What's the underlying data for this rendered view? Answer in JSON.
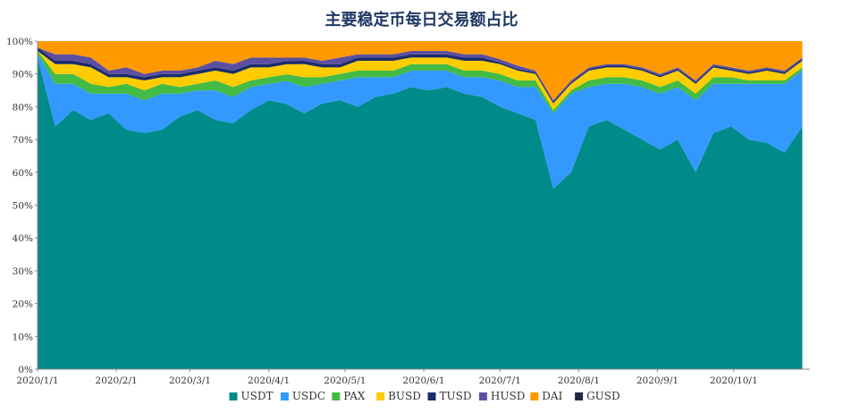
{
  "chart_data": {
    "type": "area",
    "stacked": true,
    "normalized": true,
    "title": "主要稳定币每日交易额占比",
    "xlabel": "",
    "ylabel": "",
    "ylim": [
      0,
      100
    ],
    "y_ticks": [
      "0%",
      "10%",
      "20%",
      "30%",
      "40%",
      "50%",
      "60%",
      "70%",
      "80%",
      "90%",
      "100%"
    ],
    "x_ticks": [
      "2020/1/1",
      "2020/2/1",
      "2020/3/1",
      "2020/4/1",
      "2020/5/1",
      "2020/6/1",
      "2020/7/1",
      "2020/8/1",
      "2020/9/1",
      "2020/10/1"
    ],
    "x_range": [
      "2020/1/1",
      "2020/10/31"
    ],
    "legend_position": "bottom",
    "grid": false,
    "x": [
      "2020/1/1",
      "2020/1/8",
      "2020/1/15",
      "2020/1/22",
      "2020/1/29",
      "2020/2/5",
      "2020/2/12",
      "2020/2/19",
      "2020/2/26",
      "2020/3/4",
      "2020/3/11",
      "2020/3/18",
      "2020/3/25",
      "2020/4/1",
      "2020/4/8",
      "2020/4/15",
      "2020/4/22",
      "2020/4/29",
      "2020/5/6",
      "2020/5/13",
      "2020/5/20",
      "2020/5/27",
      "2020/6/3",
      "2020/6/10",
      "2020/6/17",
      "2020/6/24",
      "2020/7/1",
      "2020/7/8",
      "2020/7/15",
      "2020/7/22",
      "2020/7/29",
      "2020/8/5",
      "2020/8/12",
      "2020/8/19",
      "2020/8/26",
      "2020/9/2",
      "2020/9/9",
      "2020/9/16",
      "2020/9/23",
      "2020/9/30",
      "2020/10/7",
      "2020/10/14",
      "2020/10/21",
      "2020/10/28"
    ],
    "series": [
      {
        "name": "USDT",
        "color": "#008B8B",
        "values": [
          95,
          74,
          79,
          76,
          78,
          73,
          72,
          73,
          77,
          79,
          76,
          75,
          79,
          82,
          80,
          78,
          81,
          82,
          80,
          83,
          84,
          86,
          85,
          86,
          84,
          83,
          80,
          78,
          76,
          55,
          60,
          74,
          76,
          73,
          70,
          67,
          70,
          60,
          72,
          74,
          70,
          69,
          66,
          74
        ]
      },
      {
        "name": "USDC",
        "color": "#3399FF",
        "values": [
          1,
          13,
          8,
          8,
          6,
          11,
          10,
          11,
          7,
          6,
          9,
          8,
          7,
          5,
          7,
          8,
          6,
          6,
          9,
          6,
          5,
          5,
          6,
          5,
          5,
          6,
          8,
          8,
          10,
          23,
          24,
          12,
          11,
          14,
          16,
          17,
          16,
          22,
          15,
          13,
          17,
          18,
          21,
          17
        ]
      },
      {
        "name": "PAX",
        "color": "#44BB44",
        "values": [
          1,
          3,
          3,
          3,
          2,
          3,
          3,
          3,
          2,
          2,
          3,
          3,
          2,
          2,
          2,
          3,
          2,
          2,
          2,
          2,
          2,
          2,
          2,
          2,
          2,
          2,
          2,
          2,
          2,
          1,
          1,
          2,
          2,
          2,
          2,
          2,
          2,
          2,
          2,
          2,
          1,
          1,
          1,
          1
        ]
      },
      {
        "name": "BUSD",
        "color": "#FFCC00",
        "values": [
          0,
          3,
          3,
          5,
          3,
          2,
          3,
          2,
          3,
          3,
          3,
          4,
          4,
          3,
          3,
          4,
          3,
          2,
          3,
          3,
          3,
          2,
          2,
          2,
          3,
          3,
          3,
          3,
          2,
          2,
          2,
          3,
          3,
          3,
          3,
          3,
          3,
          3,
          3,
          2,
          2,
          3,
          2,
          2
        ]
      },
      {
        "name": "TUSD",
        "color": "#1a2c6b",
        "values": [
          1,
          1,
          1,
          1,
          1,
          1,
          1,
          1,
          1,
          1,
          1,
          1,
          1,
          1,
          1,
          1,
          1,
          1,
          1,
          1,
          1,
          1,
          1,
          1,
          1,
          1,
          0.5,
          0.5,
          0.5,
          0.5,
          0.5,
          0.5,
          0.5,
          0.5,
          0.5,
          0.5,
          0.5,
          0.5,
          0.5,
          0.5,
          0.5,
          0.5,
          0.5,
          0.5
        ]
      },
      {
        "name": "HUSD",
        "color": "#5c4fa0",
        "values": [
          0,
          2,
          2,
          2,
          1,
          2,
          1,
          1,
          1,
          1,
          2,
          2,
          2,
          2,
          1,
          1,
          1,
          2,
          1,
          1,
          1,
          1,
          1,
          1,
          1,
          1,
          1,
          1,
          0.5,
          0.5,
          0.5,
          0.5,
          0.5,
          0.5,
          0.5,
          0.5,
          0.5,
          0.5,
          0.5,
          0.5,
          0.5,
          0.5,
          0.5,
          0.5
        ]
      },
      {
        "name": "DAI",
        "color": "#FF9900",
        "values": [
          2,
          4,
          4,
          5,
          9,
          8,
          10,
          9,
          9,
          8,
          6,
          7,
          5,
          5,
          5,
          5,
          6,
          5,
          4,
          4,
          4,
          3,
          3,
          3,
          4,
          4,
          5.5,
          7.5,
          9,
          18,
          12,
          8,
          7,
          7,
          8,
          10,
          8,
          12,
          7,
          8,
          9,
          8,
          9,
          5
        ]
      },
      {
        "name": "GUSD",
        "color": "#1f2a44",
        "values": [
          0,
          0,
          0,
          0,
          0,
          0,
          0,
          0,
          0,
          0,
          0,
          0,
          0,
          0,
          0,
          0,
          0,
          0,
          0,
          0,
          0,
          0,
          0,
          0,
          0,
          0,
          0,
          0,
          0,
          0,
          0,
          0,
          0,
          0,
          0,
          0,
          0,
          0,
          0,
          0,
          0,
          0,
          0,
          0
        ]
      }
    ]
  }
}
